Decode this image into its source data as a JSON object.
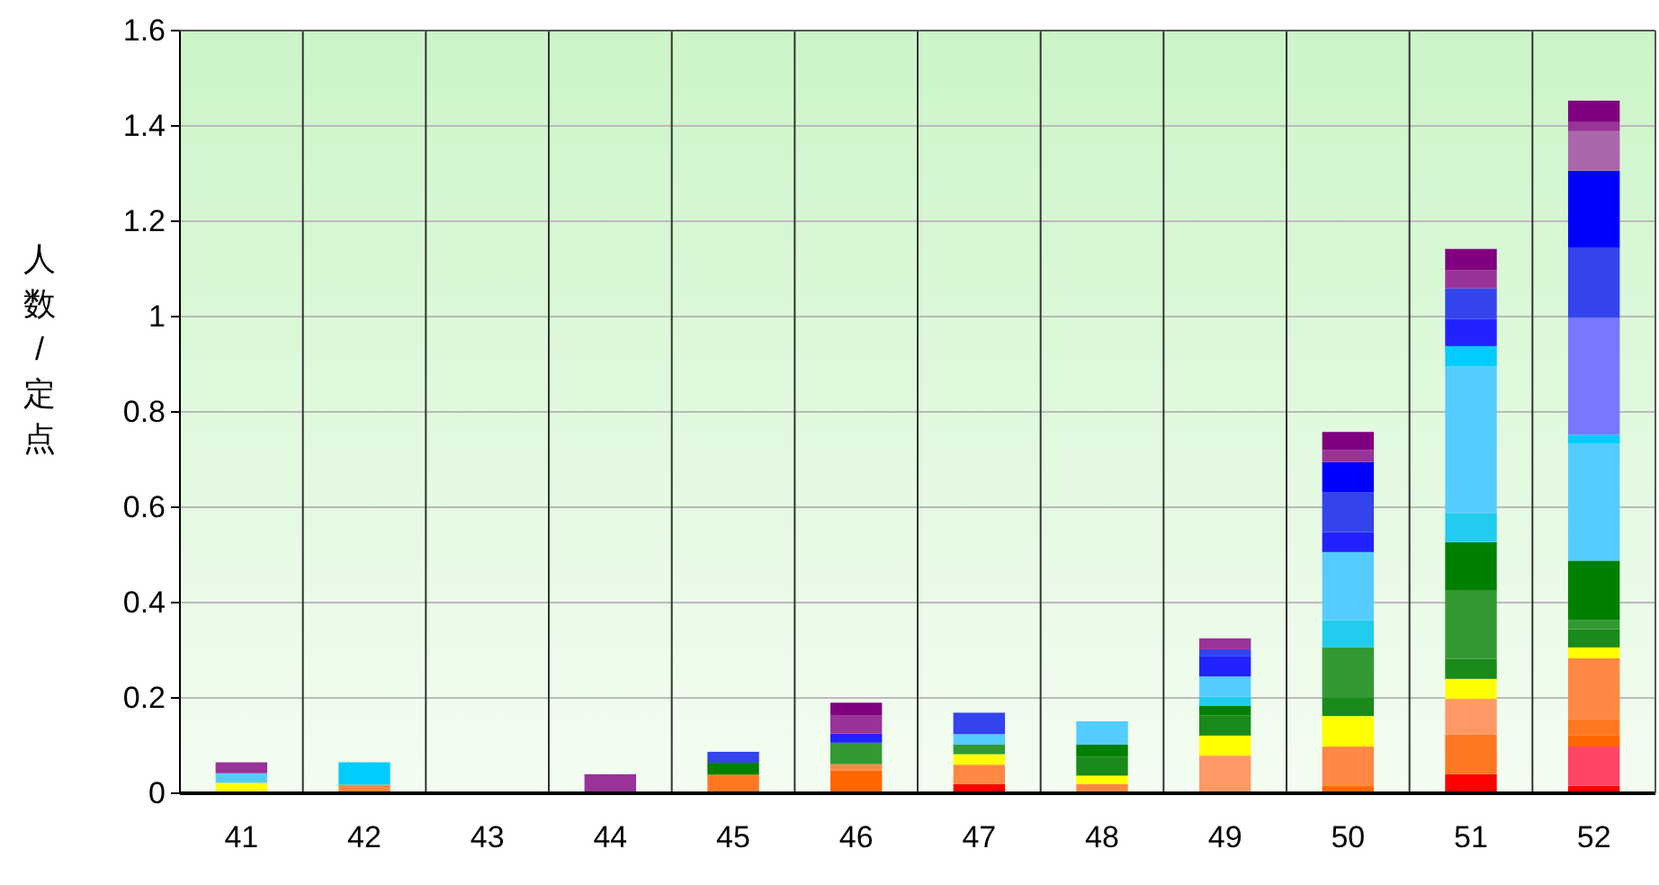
{
  "chart_data": {
    "type": "bar",
    "stacked": true,
    "ylabel": "人数/定点",
    "categories": [
      "41",
      "42",
      "43",
      "44",
      "45",
      "46",
      "47",
      "48",
      "49",
      "50",
      "51",
      "52"
    ],
    "ylim": [
      0,
      1.6
    ],
    "yticks": [
      0,
      0.2,
      0.4,
      0.6,
      0.8,
      1,
      1.2,
      1.4,
      1.6
    ],
    "grid": true,
    "series": [
      {
        "color": "#ff0000",
        "values": [
          null,
          null,
          null,
          null,
          null,
          null,
          0.019,
          null,
          null,
          null,
          0.04,
          0.016
        ]
      },
      {
        "color": "#ff4466",
        "values": [
          null,
          null,
          null,
          null,
          null,
          null,
          null,
          null,
          null,
          null,
          null,
          0.082
        ]
      },
      {
        "color": "#ff6600",
        "values": [
          null,
          null,
          null,
          null,
          null,
          0.048,
          null,
          null,
          null,
          0.015,
          null,
          0.023
        ]
      },
      {
        "color": "#ff7722",
        "values": [
          null,
          null,
          null,
          null,
          0.039,
          null,
          null,
          null,
          null,
          null,
          0.083,
          0.034
        ]
      },
      {
        "color": "#ff8844",
        "values": [
          null,
          0.018,
          null,
          null,
          null,
          0.013,
          0.041,
          0.019,
          null,
          0.083,
          null,
          0.128
        ]
      },
      {
        "color": "#ff9966",
        "values": [
          null,
          null,
          null,
          null,
          null,
          null,
          null,
          null,
          0.079,
          null,
          0.075,
          null
        ]
      },
      {
        "color": "#ffff00",
        "values": [
          0.022,
          null,
          null,
          null,
          null,
          null,
          0.022,
          0.018,
          0.042,
          0.064,
          0.042,
          0.023
        ]
      },
      {
        "color": "#1a8a1a",
        "values": [
          null,
          null,
          null,
          null,
          null,
          null,
          null,
          0.04,
          0.042,
          0.038,
          0.042,
          0.038
        ]
      },
      {
        "color": "#339933",
        "values": [
          null,
          null,
          null,
          null,
          null,
          0.045,
          0.02,
          null,
          null,
          0.106,
          0.143,
          0.019
        ]
      },
      {
        "color": "#008000",
        "values": [
          null,
          null,
          null,
          null,
          0.025,
          null,
          null,
          0.025,
          0.02,
          null,
          0.102,
          0.125
        ]
      },
      {
        "color": "#22ccee",
        "values": [
          null,
          null,
          null,
          null,
          null,
          null,
          null,
          null,
          0.02,
          0.057,
          0.06,
          null
        ]
      },
      {
        "color": "#55ccff",
        "values": [
          0.02,
          null,
          null,
          null,
          null,
          null,
          0.022,
          0.049,
          0.042,
          0.143,
          0.309,
          0.245
        ]
      },
      {
        "color": "#00ccff",
        "values": [
          null,
          0.047,
          null,
          null,
          null,
          null,
          null,
          null,
          null,
          null,
          0.042,
          0.019
        ]
      },
      {
        "color": "#2222ff",
        "values": [
          null,
          null,
          null,
          null,
          null,
          0.019,
          null,
          null,
          0.042,
          0.042,
          0.057,
          null
        ]
      },
      {
        "color": "#7777ff",
        "values": [
          null,
          null,
          null,
          null,
          null,
          null,
          null,
          null,
          null,
          null,
          null,
          0.245
        ]
      },
      {
        "color": "#3344ee",
        "values": [
          null,
          null,
          null,
          null,
          0.023,
          null,
          0.045,
          null,
          0.015,
          0.083,
          0.064,
          0.147
        ]
      },
      {
        "color": "#0000ff",
        "values": [
          null,
          null,
          null,
          null,
          null,
          null,
          null,
          null,
          null,
          0.064,
          null,
          0.162
        ]
      },
      {
        "color": "#aa66aa",
        "values": [
          null,
          null,
          null,
          null,
          null,
          null,
          null,
          null,
          null,
          null,
          null,
          0.083
        ]
      },
      {
        "color": "#993399",
        "values": [
          0.023,
          null,
          null,
          0.04,
          null,
          0.039,
          null,
          null,
          0.023,
          0.025,
          0.038,
          0.019
        ]
      },
      {
        "color": "#800080",
        "values": [
          null,
          null,
          null,
          null,
          null,
          0.026,
          null,
          null,
          null,
          0.038,
          0.045,
          0.045
        ]
      }
    ]
  }
}
